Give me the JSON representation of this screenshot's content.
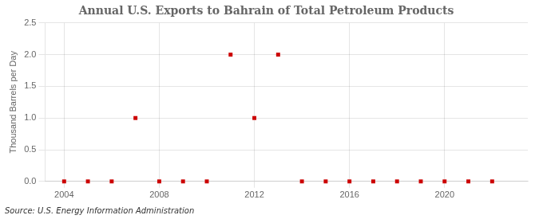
{
  "chart_data": {
    "type": "scatter",
    "title": "Annual U.S. Exports to Bahrain of Total Petroleum Products",
    "ylabel": "Thousand Barrels per Day",
    "source": "Source: U.S. Energy Information Administration",
    "x": [
      2004,
      2005,
      2006,
      2007,
      2008,
      2009,
      2010,
      2011,
      2012,
      2013,
      2014,
      2015,
      2016,
      2017,
      2018,
      2019,
      2020,
      2021,
      2022
    ],
    "values": [
      0.0,
      0.0,
      0.0,
      1.0,
      0.0,
      0.0,
      0.0,
      2.0,
      1.0,
      2.0,
      0.0,
      0.0,
      0.0,
      0.0,
      0.0,
      0.0,
      0.0,
      0.0,
      0.0
    ],
    "color": "#CC0000",
    "marker": "square",
    "xlim": [
      2003.2,
      2023.5
    ],
    "ylim": [
      0.0,
      2.5
    ],
    "xticks": [
      2004,
      2008,
      2012,
      2016,
      2020
    ],
    "yticks": [
      {
        "value": 0.0,
        "label": "0.0"
      },
      0.5,
      {
        "value": 1.0,
        "label": "1.0"
      },
      1.5,
      {
        "value": 2.0,
        "label": "2.0"
      },
      2.5
    ],
    "grid": true
  }
}
